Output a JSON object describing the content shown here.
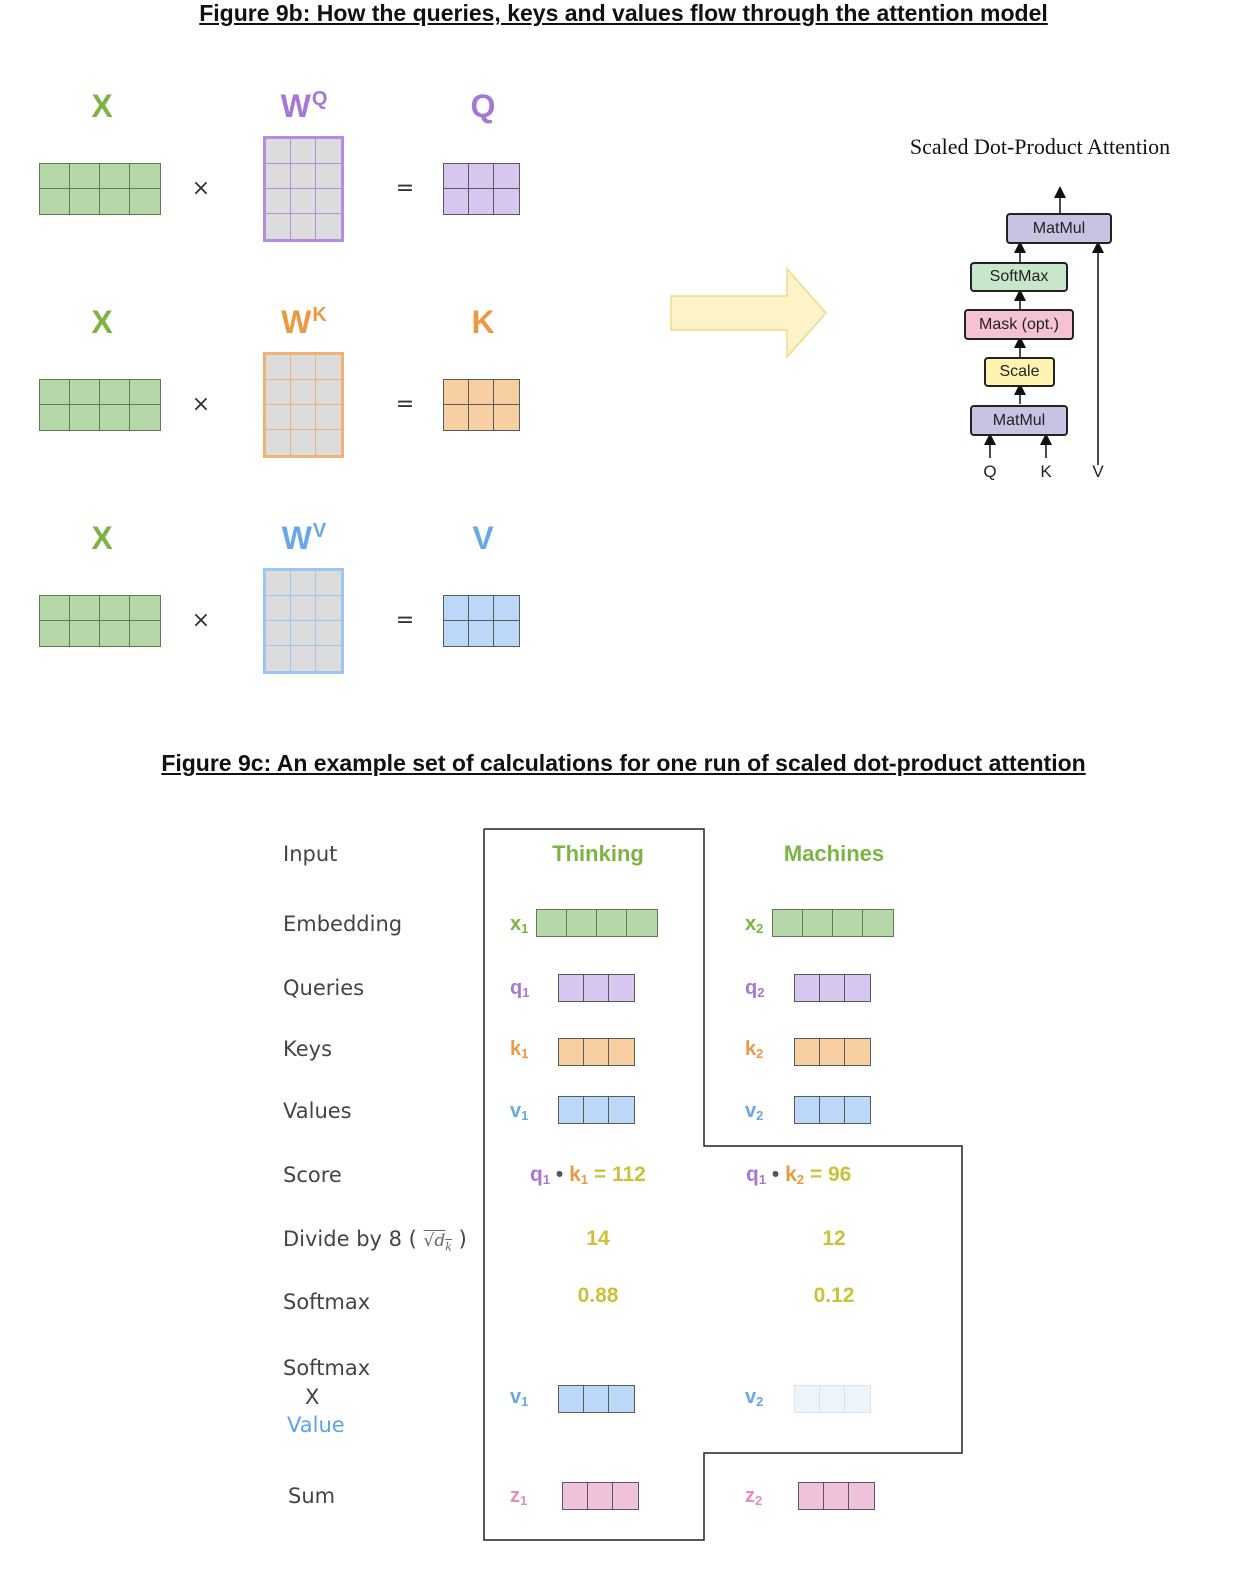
{
  "fig9b": {
    "title": "Figure 9b: How the queries, keys and values flow through the attention model",
    "rows": [
      {
        "x": "X",
        "w": "W",
        "w_sup": "Q",
        "out": "Q",
        "color": "#a678d6",
        "fill": "#d7c6f0",
        "border": "#b58ce0",
        "times": "×",
        "equals": "="
      },
      {
        "x": "X",
        "w": "W",
        "w_sup": "K",
        "out": "K",
        "color": "#eb9a44",
        "fill": "#f7cfa0",
        "border": "#f0b275",
        "times": "×",
        "equals": "="
      },
      {
        "x": "X",
        "w": "W",
        "w_sup": "V",
        "out": "V",
        "color": "#68a8e6",
        "fill": "#bcd8f8",
        "border": "#9cc6f4",
        "times": "×",
        "equals": "="
      }
    ],
    "x_color": "#7cb342",
    "x_fill": "#b6d7a8"
  },
  "sdpa": {
    "title": "Scaled Dot-Product Attention",
    "boxes": {
      "matmul_top": "MatMul",
      "softmax": "SoftMax",
      "mask": "Mask (opt.)",
      "scale": "Scale",
      "matmul_bottom": "MatMul"
    },
    "inputs": {
      "q": "Q",
      "k": "K",
      "v": "V"
    },
    "colors": {
      "matmul": "#c9c2e2",
      "softmax": "#c8e6c9",
      "mask": "#f5c2d4",
      "scale": "#fff3b0"
    }
  },
  "fig9c": {
    "title": "Figure 9c: An example set of calculations for one run of scaled dot-product attention",
    "row_labels": {
      "input": "Input",
      "embedding": "Embedding",
      "queries": "Queries",
      "keys": "Keys",
      "values": "Values",
      "score": "Score",
      "divide": "Divide by 8 (",
      "divide_sqrt": "√d",
      "divide_sub": "k",
      "divide_close": ")",
      "softmax": "Softmax",
      "softmax_value_1": "Softmax",
      "softmax_value_2": "X",
      "softmax_value_3": "Value",
      "sum": "Sum"
    },
    "words": {
      "thinking": "Thinking",
      "machines": "Machines"
    },
    "col1": {
      "x": "x",
      "x_sub": "1",
      "q": "q",
      "q_sub": "1",
      "k": "k",
      "k_sub": "1",
      "v": "v",
      "v_sub": "1",
      "score_q": "q",
      "score_q_sub": "1",
      "score_dot": "•",
      "score_k": "k",
      "score_k_sub": "1",
      "score_eq": "= 112",
      "divided": "14",
      "softmax": "0.88",
      "sv": "v",
      "sv_sub": "1",
      "z": "z",
      "z_sub": "1"
    },
    "col2": {
      "x": "x",
      "x_sub": "2",
      "q": "q",
      "q_sub": "2",
      "k": "k",
      "k_sub": "2",
      "v": "v",
      "v_sub": "2",
      "score_q": "q",
      "score_q_sub": "1",
      "score_dot": "•",
      "score_k": "k",
      "score_k_sub": "2",
      "score_eq": "= 96",
      "divided": "12",
      "softmax": "0.12",
      "sv": "v",
      "sv_sub": "2",
      "z": "z",
      "z_sub": "2"
    },
    "colors": {
      "green": "#7cb342",
      "purple": "#a678d6",
      "orange": "#eb9a44",
      "blue": "#68a8e6",
      "pink": "#e98bbc",
      "yellow": "#c9c23a",
      "value_label": "#5ea3e3"
    }
  }
}
